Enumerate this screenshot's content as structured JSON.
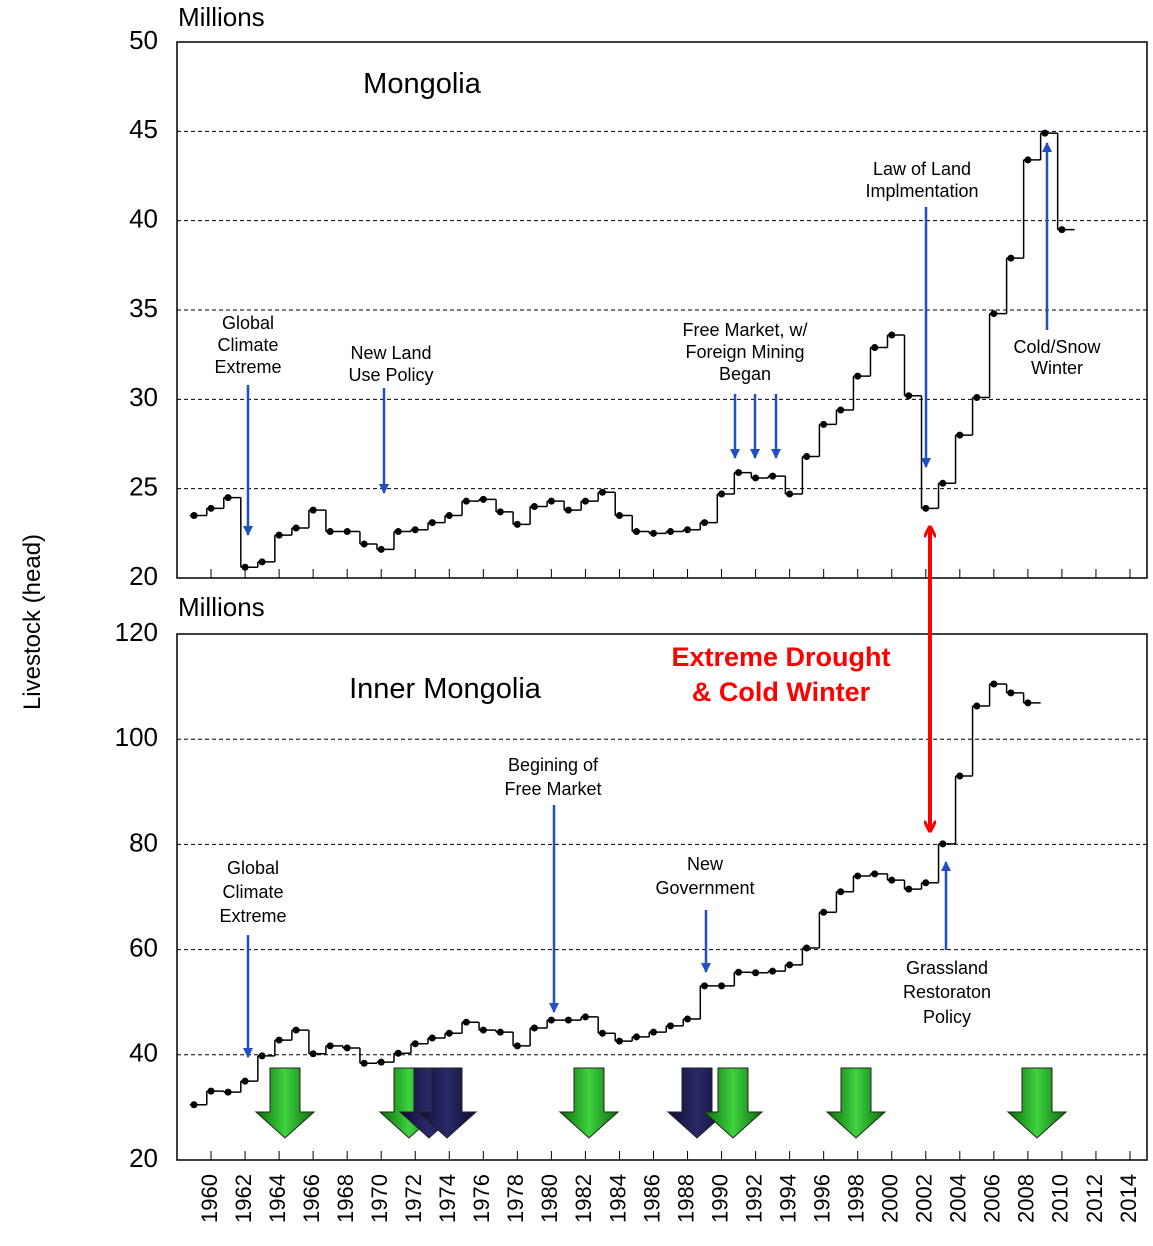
{
  "chart_data": [
    {
      "type": "step",
      "title": "Mongolia",
      "y_unit": "Millions",
      "ylabel": "Livestock (head)",
      "xlim": [
        1958,
        2015
      ],
      "ylim": [
        20,
        50
      ],
      "yticks": [
        20,
        25,
        30,
        35,
        40,
        45,
        50
      ],
      "grid": true,
      "x": [
        1959,
        1960,
        1961,
        1962,
        1963,
        1964,
        1965,
        1966,
        1967,
        1968,
        1969,
        1970,
        1971,
        1972,
        1973,
        1974,
        1975,
        1976,
        1977,
        1978,
        1979,
        1980,
        1981,
        1982,
        1983,
        1984,
        1985,
        1986,
        1987,
        1988,
        1989,
        1990,
        1991,
        1992,
        1993,
        1994,
        1995,
        1996,
        1997,
        1998,
        1999,
        2000,
        2001,
        2002,
        2003,
        2004,
        2005,
        2006,
        2007,
        2008,
        2009,
        2010
      ],
      "values": [
        23.5,
        23.9,
        24.5,
        20.6,
        20.9,
        22.4,
        22.8,
        23.8,
        22.6,
        22.6,
        21.9,
        21.6,
        22.6,
        22.7,
        23.1,
        23.5,
        24.3,
        24.4,
        23.7,
        23.0,
        24.0,
        24.3,
        23.8,
        24.3,
        24.8,
        23.5,
        22.6,
        22.5,
        22.6,
        22.7,
        23.1,
        24.7,
        25.9,
        25.6,
        25.7,
        24.7,
        26.8,
        28.6,
        29.4,
        31.3,
        32.9,
        33.6,
        30.2,
        23.9,
        25.3,
        28.0,
        30.1,
        34.8,
        37.9,
        43.4,
        44.9,
        39.5
      ],
      "color": "#000000",
      "annotations": [
        {
          "lines": [
            "Global",
            "Climate",
            "Extreme"
          ]
        },
        {
          "lines": [
            "New Land",
            "Use Policy"
          ]
        },
        {
          "lines": [
            "Free Market, w/",
            "Foreign Mining",
            "Began"
          ]
        },
        {
          "lines": [
            "Law of Land",
            "Implmentation"
          ]
        },
        {
          "lines": [
            "Cold/Snow",
            "Winter"
          ]
        }
      ]
    },
    {
      "type": "step",
      "title": "Inner Mongolia",
      "y_unit": "Millions",
      "xlim": [
        1958,
        2015
      ],
      "ylim": [
        20,
        120
      ],
      "yticks": [
        20,
        40,
        60,
        80,
        100,
        120
      ],
      "grid": true,
      "xticks": [
        1960,
        1962,
        1964,
        1966,
        1968,
        1970,
        1972,
        1974,
        1976,
        1978,
        1980,
        1982,
        1984,
        1986,
        1988,
        1990,
        1992,
        1994,
        1996,
        1998,
        2000,
        2002,
        2004,
        2006,
        2008,
        2010,
        2012,
        2014
      ],
      "x": [
        1959,
        1960,
        1961,
        1962,
        1963,
        1964,
        1965,
        1966,
        1967,
        1968,
        1969,
        1970,
        1971,
        1972,
        1973,
        1974,
        1975,
        1976,
        1977,
        1978,
        1979,
        1980,
        1981,
        1982,
        1983,
        1984,
        1985,
        1986,
        1987,
        1988,
        1989,
        1990,
        1991,
        1992,
        1993,
        1994,
        1995,
        1996,
        1997,
        1998,
        1999,
        2000,
        2001,
        2002,
        2003,
        2004,
        2005,
        2006,
        2007,
        2008
      ],
      "values": [
        30.5,
        33.1,
        32.9,
        35.0,
        39.8,
        42.8,
        44.7,
        40.2,
        41.7,
        41.3,
        38.4,
        38.6,
        40.3,
        42.1,
        43.2,
        44.1,
        46.2,
        44.7,
        44.3,
        41.7,
        45.1,
        46.6,
        46.6,
        47.2,
        44.1,
        42.6,
        43.4,
        44.3,
        45.5,
        46.8,
        53.1,
        53.1,
        55.7,
        55.6,
        55.9,
        57.1,
        60.3,
        67.1,
        71.0,
        74.0,
        74.4,
        73.2,
        71.5,
        72.7,
        80.1,
        93.0,
        106.3,
        110.5,
        108.8,
        106.9
      ],
      "color": "#000000",
      "annotations": [
        {
          "lines": [
            "Global",
            "Climate",
            "Extreme"
          ]
        },
        {
          "lines": [
            "Begining of",
            "Free Market"
          ]
        },
        {
          "lines": [
            "New",
            "Government"
          ]
        },
        {
          "lines": [
            "Grassland",
            "Restoraton",
            "Policy"
          ]
        },
        {
          "lines": [
            "Extreme Drought",
            "& Cold Winter"
          ]
        }
      ]
    }
  ]
}
